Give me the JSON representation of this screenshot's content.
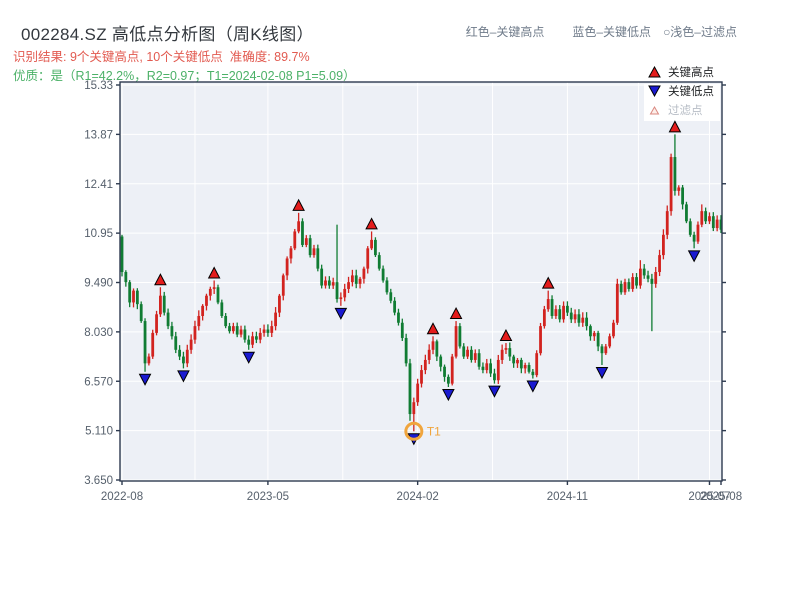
{
  "header": {
    "title": "002284.SZ 高低点分析图（周K线图）",
    "legend_high": "红色–关键高点",
    "legend_low": "蓝色–关键低点",
    "legend_filter": "○浅色–过滤点",
    "result_line": "识别结果: 9个关键高点, 10个关键低点  准确度: 89.7%",
    "quality_line": "优质：是（R1=42.2%，R2=0.97；T1=2024-02-08 P1=5.09）"
  },
  "plot_legend": {
    "items": [
      {
        "label": "关键高点",
        "icon": "red-up-triangle"
      },
      {
        "label": "关键低点",
        "icon": "blue-down-triangle"
      },
      {
        "label": "过滤点",
        "icon": "light-outline-triangle"
      }
    ]
  },
  "chart_data": {
    "type": "candlestick",
    "title": "002284.SZ 高低点分析图（周K线图）",
    "x_axis": {
      "ticks": [
        {
          "week": 0,
          "label": "2022-08"
        },
        {
          "week": 38,
          "label": "2023-05"
        },
        {
          "week": 77,
          "label": "2024-02"
        },
        {
          "week": 116,
          "label": "2024-11"
        },
        {
          "week": 153,
          "label": "2025-07"
        },
        {
          "week": 156,
          "label": "2025-08"
        }
      ]
    },
    "y_axis": {
      "min": 3.65,
      "max": 15.33,
      "tick_values": [
        15.33,
        13.87,
        12.41,
        10.95,
        9.49,
        8.03,
        6.57,
        5.11,
        3.65
      ],
      "tick_labels": [
        "15.33",
        "13.87",
        "12.41",
        "10.95",
        "9.490",
        "8.030",
        "6.570",
        "5.110",
        "3.650"
      ]
    },
    "grid_weeks": [
      0,
      19,
      38,
      57.5,
      77,
      96.5,
      116,
      134.5,
      153
    ],
    "weeks": 157,
    "first_open": 10.85,
    "closes": [
      9.8,
      9.5,
      8.9,
      9.25,
      8.85,
      8.35,
      7.1,
      7.3,
      8.0,
      8.55,
      9.1,
      8.6,
      8.2,
      7.9,
      7.5,
      7.3,
      7.1,
      7.5,
      7.8,
      8.2,
      8.5,
      8.8,
      9.1,
      9.3,
      9.35,
      8.9,
      8.5,
      8.2,
      8.05,
      8.2,
      7.95,
      8.1,
      7.8,
      7.65,
      7.9,
      7.8,
      8.0,
      8.1,
      8.0,
      8.2,
      8.6,
      9.1,
      9.7,
      10.2,
      10.5,
      11.0,
      11.3,
      10.6,
      10.8,
      10.3,
      10.5,
      9.9,
      9.4,
      9.55,
      9.4,
      9.5,
      9.0,
      9.05,
      9.3,
      9.5,
      9.7,
      9.45,
      9.6,
      9.9,
      10.5,
      10.75,
      10.3,
      9.9,
      9.55,
      9.2,
      8.95,
      8.6,
      8.3,
      7.85,
      7.1,
      5.6,
      5.95,
      6.5,
      6.9,
      7.2,
      7.5,
      7.75,
      7.3,
      7.0,
      6.7,
      6.5,
      7.3,
      8.2,
      7.6,
      7.3,
      7.5,
      7.2,
      7.4,
      7.0,
      6.9,
      7.1,
      6.8,
      6.6,
      7.2,
      7.5,
      7.55,
      7.3,
      7.1,
      7.2,
      6.95,
      7.05,
      6.85,
      6.75,
      7.4,
      8.2,
      8.7,
      9.0,
      8.5,
      8.7,
      8.4,
      8.8,
      8.6,
      8.4,
      8.55,
      8.3,
      8.45,
      8.2,
      7.9,
      8.0,
      7.6,
      7.4,
      7.6,
      7.9,
      8.3,
      9.45,
      9.2,
      9.5,
      9.3,
      9.65,
      9.4,
      9.9,
      9.7,
      9.6,
      9.45,
      9.8,
      10.3,
      10.9,
      11.6,
      13.2,
      12.2,
      12.3,
      11.8,
      11.3,
      10.9,
      10.7,
      11.2,
      11.6,
      11.3,
      11.45,
      11.1,
      11.35,
      11.05
    ],
    "high_overrides": {
      "0": 10.9,
      "10": 9.35,
      "24": 9.55,
      "46": 11.55,
      "56": 11.2,
      "65": 11.0,
      "81": 7.9,
      "87": 8.35,
      "100": 7.7,
      "111": 9.25,
      "129": 9.6,
      "135": 10.15,
      "143": 13.3,
      "144": 13.87,
      "151": 11.8
    },
    "low_overrides": {
      "6": 6.85,
      "16": 6.95,
      "33": 7.5,
      "57": 8.8,
      "75": 5.4,
      "76": 5.09,
      "85": 6.4,
      "97": 6.5,
      "107": 6.65,
      "125": 7.05,
      "138": 8.05,
      "149": 10.5
    },
    "key_highs": [
      {
        "week": 10,
        "value": 9.35
      },
      {
        "week": 24,
        "value": 9.55
      },
      {
        "week": 46,
        "value": 11.55
      },
      {
        "week": 65,
        "value": 11.0
      },
      {
        "week": 81,
        "value": 7.9
      },
      {
        "week": 87,
        "value": 8.35
      },
      {
        "week": 100,
        "value": 7.7
      },
      {
        "week": 111,
        "value": 9.25
      },
      {
        "week": 144,
        "value": 13.87
      }
    ],
    "key_lows": [
      {
        "week": 6,
        "value": 6.85
      },
      {
        "week": 16,
        "value": 6.95
      },
      {
        "week": 33,
        "value": 7.5
      },
      {
        "week": 57,
        "value": 8.8
      },
      {
        "week": 76,
        "value": 5.09
      },
      {
        "week": 85,
        "value": 6.4
      },
      {
        "week": 97,
        "value": 6.5
      },
      {
        "week": 107,
        "value": 6.65
      },
      {
        "week": 125,
        "value": 7.05
      },
      {
        "week": 149,
        "value": 10.5
      }
    ],
    "t1_marker": {
      "week": 76,
      "value": 5.09,
      "label": "T1",
      "date": "2024-02-08",
      "price": "5.09"
    },
    "colors": {
      "up_candle": "#d2231f",
      "down_candle": "#107c33",
      "key_high_marker": "#e41c1c",
      "key_low_marker": "#1a1ad0",
      "marker_outline": "#000000",
      "filter_marker_stroke": "#d98880",
      "filter_marker_fill": "#fdeee9",
      "t1_orange": "#f0a53d",
      "plot_bg": "#edf0f6",
      "grid": "#ffffff",
      "spine": "#2d3a4f",
      "tick_label": "#56606c",
      "title_text": "#33383e",
      "result_text": "#e25a50",
      "quality_text": "#4cb168",
      "header_legend_text": "#6f7b8a"
    }
  }
}
